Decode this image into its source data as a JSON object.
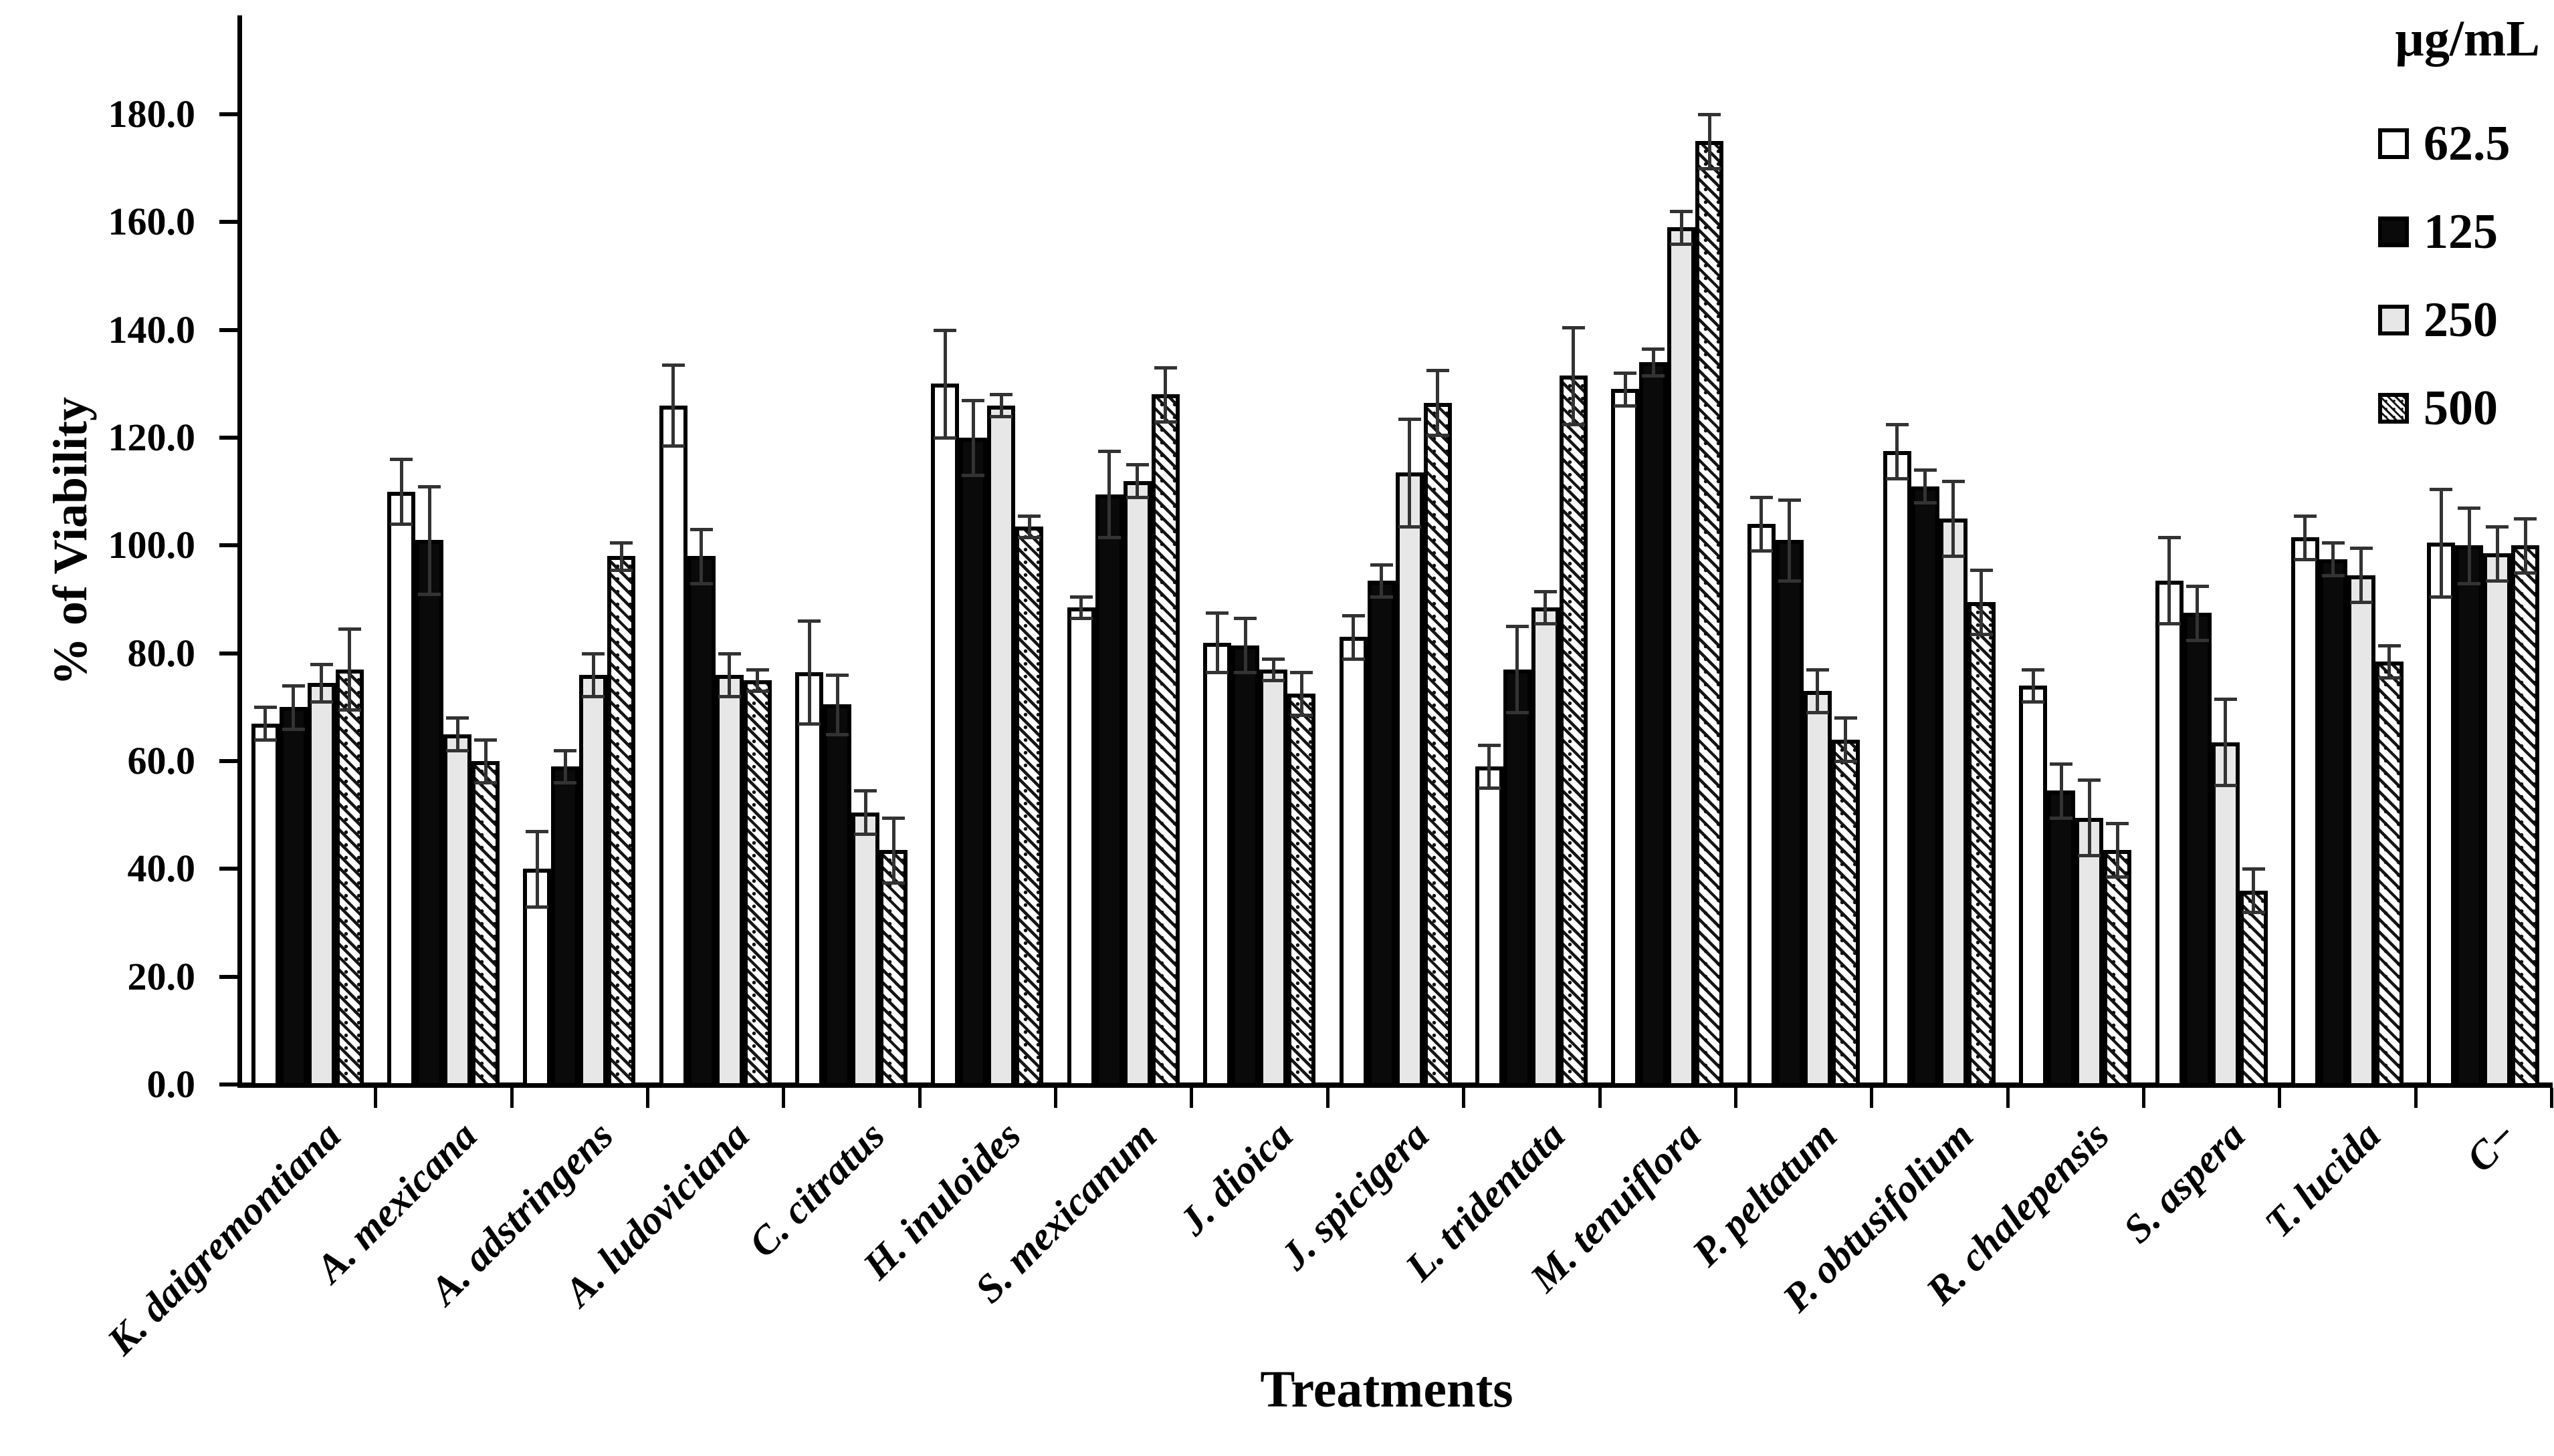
{
  "figure": {
    "background": "#ffffff",
    "ink_color": "#000000",
    "error_bar_color": "#333333",
    "gray_fill": "#e7e7e7"
  },
  "chart_data": {
    "type": "bar",
    "grouped": true,
    "title": "",
    "xlabel": "Treatments",
    "ylabel": "% of Viability",
    "legend_title": "µg/mL",
    "legend_position": "top-right",
    "grid": false,
    "ylim": [
      0,
      196
    ],
    "ytick_labels": [
      "0.0",
      "20.0",
      "40.0",
      "60.0",
      "80.0",
      "100.0",
      "120.0",
      "140.0",
      "160.0",
      "180.0"
    ],
    "categories": [
      "K. daigremontiana",
      "A. mexicana",
      "A. adstringens",
      "A. ludoviciana",
      "C. citratus",
      "H. inuloides",
      "S. mexicanum",
      "J. dioica",
      "J. spicigera",
      "L. tridentata",
      "M. tenuiflora",
      "P. peltatum",
      "P. obtusifolium",
      "R. chalepensis",
      "S. aspera",
      "T. lucida",
      "C−"
    ],
    "series": [
      {
        "name": "62.5",
        "pattern": "white",
        "fill": "#ffffff",
        "values": [
          67,
          110,
          40,
          126,
          76.5,
          130,
          88.5,
          82,
          83,
          59,
          129,
          104,
          117.5,
          74,
          93.5,
          101.5,
          100.5
        ],
        "errors": [
          3,
          6,
          7,
          7.5,
          9.5,
          10,
          2,
          5.5,
          4,
          4,
          3,
          5,
          5,
          3,
          8,
          4,
          10
        ]
      },
      {
        "name": "125",
        "pattern": "black",
        "fill": "#0a0a0a",
        "values": [
          70,
          101,
          59,
          98,
          70.5,
          120,
          109.5,
          81.5,
          93.5,
          77,
          134,
          101,
          111,
          54.5,
          87.5,
          97.5,
          100
        ],
        "errors": [
          4,
          10,
          3,
          5,
          5.5,
          7,
          8,
          5,
          3,
          8,
          2.5,
          7.5,
          3,
          5,
          5,
          3,
          7
        ]
      },
      {
        "name": "250",
        "pattern": "gray",
        "fill": "#e7e7e7",
        "values": [
          74.5,
          65,
          76,
          76,
          50.5,
          126,
          112,
          77,
          113.5,
          88.5,
          159,
          73,
          105,
          49.5,
          63.5,
          94.5,
          98.5
        ],
        "errors": [
          3.5,
          3,
          4,
          4,
          4,
          2,
          3,
          2,
          10,
          3,
          3,
          4,
          7,
          7,
          8,
          5,
          5
        ]
      },
      {
        "name": "500",
        "pattern": "hatch",
        "fill": "diagonal-down-hatch",
        "values": [
          77,
          60,
          98,
          75,
          43.5,
          103.5,
          128,
          72.5,
          126.5,
          131.5,
          175,
          64,
          89.5,
          43.5,
          36,
          78.5,
          100
        ],
        "errors": [
          7.5,
          4,
          2.5,
          2,
          6,
          2,
          5,
          4,
          6,
          9,
          5,
          4,
          6,
          5,
          4,
          3,
          5
        ]
      }
    ]
  }
}
